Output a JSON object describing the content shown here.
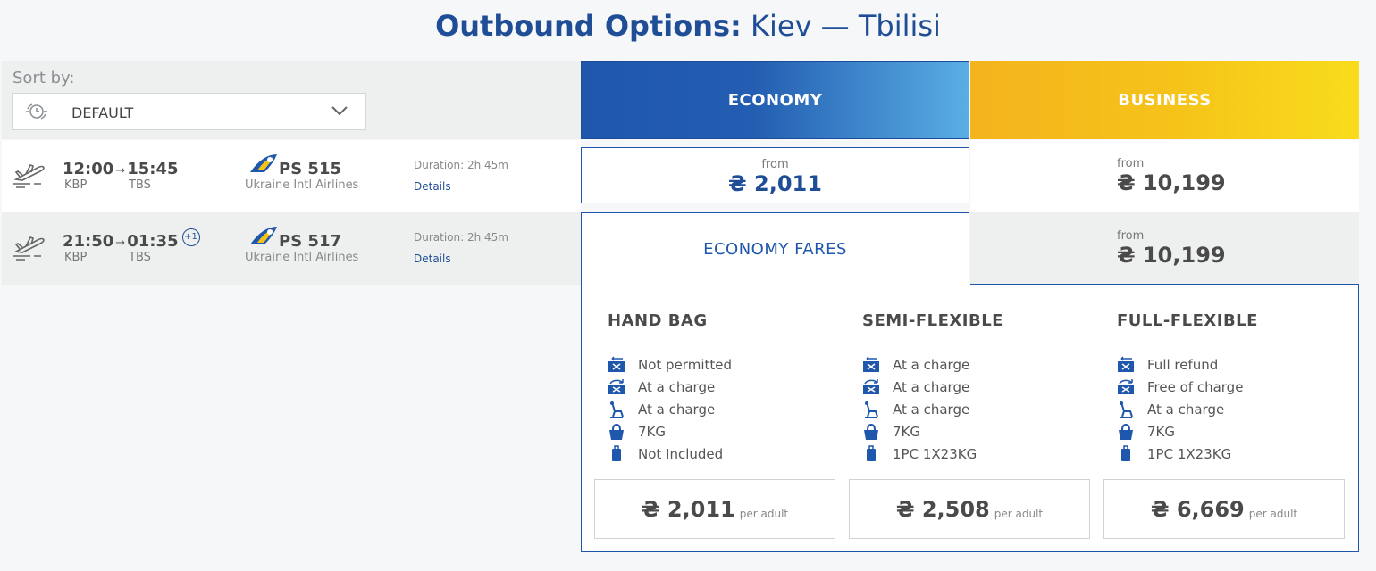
{
  "header": {
    "title_bold": "Outbound Options:",
    "route": "Kiev — Tbilisi"
  },
  "sort": {
    "label": "Sort by:",
    "value": "DEFAULT"
  },
  "classes": {
    "economy": "ECONOMY",
    "business": "BUSINESS"
  },
  "flights": [
    {
      "dep": "12:00",
      "arr": "15:45",
      "from": "KBP",
      "to": "TBS",
      "flight": "PS 515",
      "airline": "Ukraine Intl Airlines",
      "duration": "Duration: 2h 45m",
      "details": "Details",
      "economy_from": "from",
      "economy_price": "₴ 2,011",
      "business_from": "from",
      "business_price": "₴ 10,199"
    },
    {
      "dep": "21:50",
      "arr": "01:35",
      "next_day": "+1",
      "from": "KBP",
      "to": "TBS",
      "flight": "PS 517",
      "airline": "Ukraine Intl Airlines",
      "duration": "Duration: 2h 45m",
      "details": "Details",
      "business_from": "from",
      "business_price": "₴ 10,199"
    }
  ],
  "fares": {
    "tab_label": "ECONOMY FARES",
    "per_adult": "per adult",
    "columns": [
      {
        "name": "HAND BAG",
        "features": [
          "Not permitted",
          "At a charge",
          "At a charge",
          "7KG",
          "Not Included"
        ],
        "price": "₴ 2,011"
      },
      {
        "name": "SEMI-FLEXIBLE",
        "features": [
          "At a charge",
          "At a charge",
          "At a charge",
          "7KG",
          "1PC 1X23KG"
        ],
        "price": "₴ 2,508"
      },
      {
        "name": "FULL-FLEXIBLE",
        "features": [
          "Full refund",
          "Free of charge",
          "At a charge",
          "7KG",
          "1PC 1X23KG"
        ],
        "price": "₴ 6,669"
      }
    ],
    "feature_icons": [
      "refund-icon",
      "change-icon",
      "seat-icon",
      "hand-bag-icon",
      "suitcase-icon"
    ]
  },
  "colors": {
    "brand_blue": "#1f4e96",
    "economy_blue": "#1f57ad",
    "business_yellow": "#f6c219"
  }
}
